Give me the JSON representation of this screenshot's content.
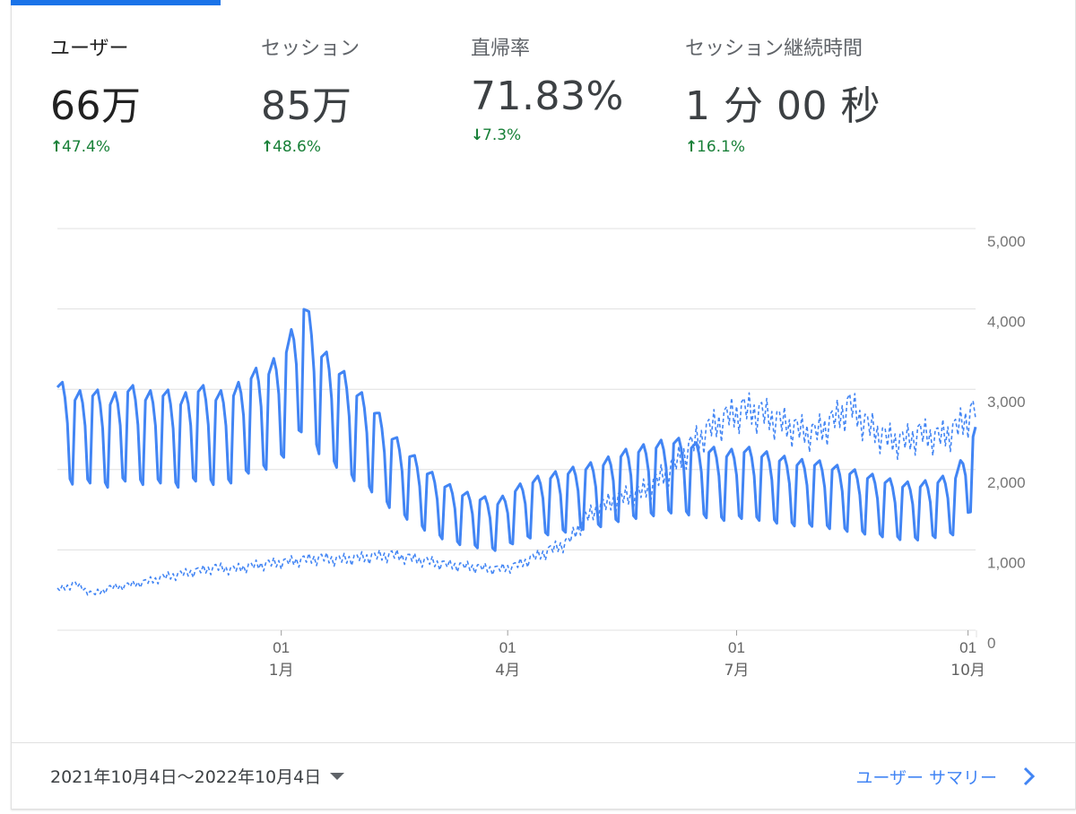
{
  "metrics": [
    {
      "label": "ユーザー",
      "value": "66万",
      "direction": "up",
      "change": "47.4%"
    },
    {
      "label": "セッション",
      "value": "85万",
      "direction": "up",
      "change": "48.6%"
    },
    {
      "label": "直帰率",
      "value": "71.83%",
      "direction": "down",
      "change": "7.3%"
    },
    {
      "label": "セッション継続時間",
      "value": "1 分 00 秒",
      "direction": "up",
      "change": "16.1%"
    }
  ],
  "colors": {
    "accent": "#4285f4",
    "positive": "#188038",
    "grid": "#e0e0e0"
  },
  "footer": {
    "date_range": "2021年10月4日～2022年10月4日",
    "link_label": "ユーザー サマリー"
  },
  "chart_data": {
    "type": "line",
    "ylim": [
      0,
      5000
    ],
    "y_ticks": [
      "5,000",
      "4,000",
      "3,000",
      "2,000",
      "1,000",
      "0"
    ],
    "x_ticks": [
      {
        "day": "01",
        "month": "1月"
      },
      {
        "day": "01",
        "month": "4月"
      },
      {
        "day": "01",
        "month": "7月"
      },
      {
        "day": "01",
        "month": "10月"
      }
    ],
    "series": [
      {
        "style": "solid",
        "points": [
          [
            "2021-10-04",
            2800
          ],
          [
            "2021-10-11",
            2650
          ],
          [
            "2021-10-18",
            2700
          ],
          [
            "2021-10-25",
            2600
          ],
          [
            "2021-11-01",
            2750
          ],
          [
            "2021-11-08",
            2650
          ],
          [
            "2021-11-15",
            2700
          ],
          [
            "2021-11-22",
            2600
          ],
          [
            "2021-11-29",
            2750
          ],
          [
            "2021-12-06",
            2650
          ],
          [
            "2021-12-13",
            2700
          ],
          [
            "2021-12-20",
            2900
          ],
          [
            "2021-12-27",
            2950
          ],
          [
            "2022-01-03",
            3200
          ],
          [
            "2022-01-10",
            3700
          ],
          [
            "2022-01-17",
            3150
          ],
          [
            "2022-01-24",
            2950
          ],
          [
            "2022-01-31",
            2700
          ],
          [
            "2022-02-07",
            2500
          ],
          [
            "2022-02-14",
            2200
          ],
          [
            "2022-02-21",
            2000
          ],
          [
            "2022-02-28",
            1800
          ],
          [
            "2022-03-07",
            1650
          ],
          [
            "2022-03-14",
            1550
          ],
          [
            "2022-03-21",
            1500
          ],
          [
            "2022-03-28",
            1450
          ],
          [
            "2022-04-04",
            1600
          ],
          [
            "2022-04-11",
            1700
          ],
          [
            "2022-04-18",
            1750
          ],
          [
            "2022-04-25",
            1800
          ],
          [
            "2022-05-02",
            1850
          ],
          [
            "2022-05-09",
            1900
          ],
          [
            "2022-05-16",
            2000
          ],
          [
            "2022-05-23",
            2050
          ],
          [
            "2022-05-30",
            2100
          ],
          [
            "2022-06-06",
            2150
          ],
          [
            "2022-06-13",
            2100
          ],
          [
            "2022-06-20",
            2050
          ],
          [
            "2022-06-27",
            2000
          ],
          [
            "2022-07-04",
            2050
          ],
          [
            "2022-07-11",
            2000
          ],
          [
            "2022-07-18",
            1950
          ],
          [
            "2022-07-25",
            1900
          ],
          [
            "2022-08-01",
            1900
          ],
          [
            "2022-08-08",
            1850
          ],
          [
            "2022-08-15",
            1800
          ],
          [
            "2022-08-22",
            1750
          ],
          [
            "2022-08-29",
            1700
          ],
          [
            "2022-09-05",
            1650
          ],
          [
            "2022-09-12",
            1650
          ],
          [
            "2022-09-19",
            1700
          ],
          [
            "2022-09-26",
            1750
          ],
          [
            "2022-10-04",
            2300
          ]
        ]
      },
      {
        "style": "dashed",
        "points": [
          [
            "2021-10-04",
            500
          ],
          [
            "2021-10-11",
            580
          ],
          [
            "2021-10-18",
            450
          ],
          [
            "2021-10-25",
            530
          ],
          [
            "2021-11-01",
            560
          ],
          [
            "2021-11-08",
            600
          ],
          [
            "2021-11-15",
            660
          ],
          [
            "2021-11-22",
            700
          ],
          [
            "2021-11-29",
            740
          ],
          [
            "2021-12-06",
            780
          ],
          [
            "2021-12-13",
            760
          ],
          [
            "2021-12-20",
            800
          ],
          [
            "2021-12-27",
            830
          ],
          [
            "2022-01-03",
            850
          ],
          [
            "2022-01-10",
            880
          ],
          [
            "2022-01-17",
            900
          ],
          [
            "2022-01-24",
            880
          ],
          [
            "2022-01-31",
            900
          ],
          [
            "2022-02-07",
            920
          ],
          [
            "2022-02-14",
            940
          ],
          [
            "2022-02-21",
            900
          ],
          [
            "2022-02-28",
            860
          ],
          [
            "2022-03-07",
            820
          ],
          [
            "2022-03-14",
            800
          ],
          [
            "2022-03-21",
            780
          ],
          [
            "2022-03-28",
            760
          ],
          [
            "2022-04-04",
            800
          ],
          [
            "2022-04-11",
            900
          ],
          [
            "2022-04-18",
            1000
          ],
          [
            "2022-04-25",
            1100
          ],
          [
            "2022-05-02",
            1400
          ],
          [
            "2022-05-09",
            1550
          ],
          [
            "2022-05-16",
            1650
          ],
          [
            "2022-05-23",
            1700
          ],
          [
            "2022-05-30",
            1850
          ],
          [
            "2022-06-06",
            2050
          ],
          [
            "2022-06-13",
            2300
          ],
          [
            "2022-06-20",
            2500
          ],
          [
            "2022-06-27",
            2650
          ],
          [
            "2022-07-04",
            2750
          ],
          [
            "2022-07-11",
            2700
          ],
          [
            "2022-07-18",
            2600
          ],
          [
            "2022-07-25",
            2500
          ],
          [
            "2022-08-01",
            2450
          ],
          [
            "2022-08-08",
            2600
          ],
          [
            "2022-08-15",
            2800
          ],
          [
            "2022-08-22",
            2550
          ],
          [
            "2022-08-29",
            2400
          ],
          [
            "2022-09-05",
            2350
          ],
          [
            "2022-09-12",
            2450
          ],
          [
            "2022-09-19",
            2400
          ],
          [
            "2022-09-26",
            2500
          ],
          [
            "2022-10-04",
            2750
          ]
        ]
      }
    ]
  }
}
